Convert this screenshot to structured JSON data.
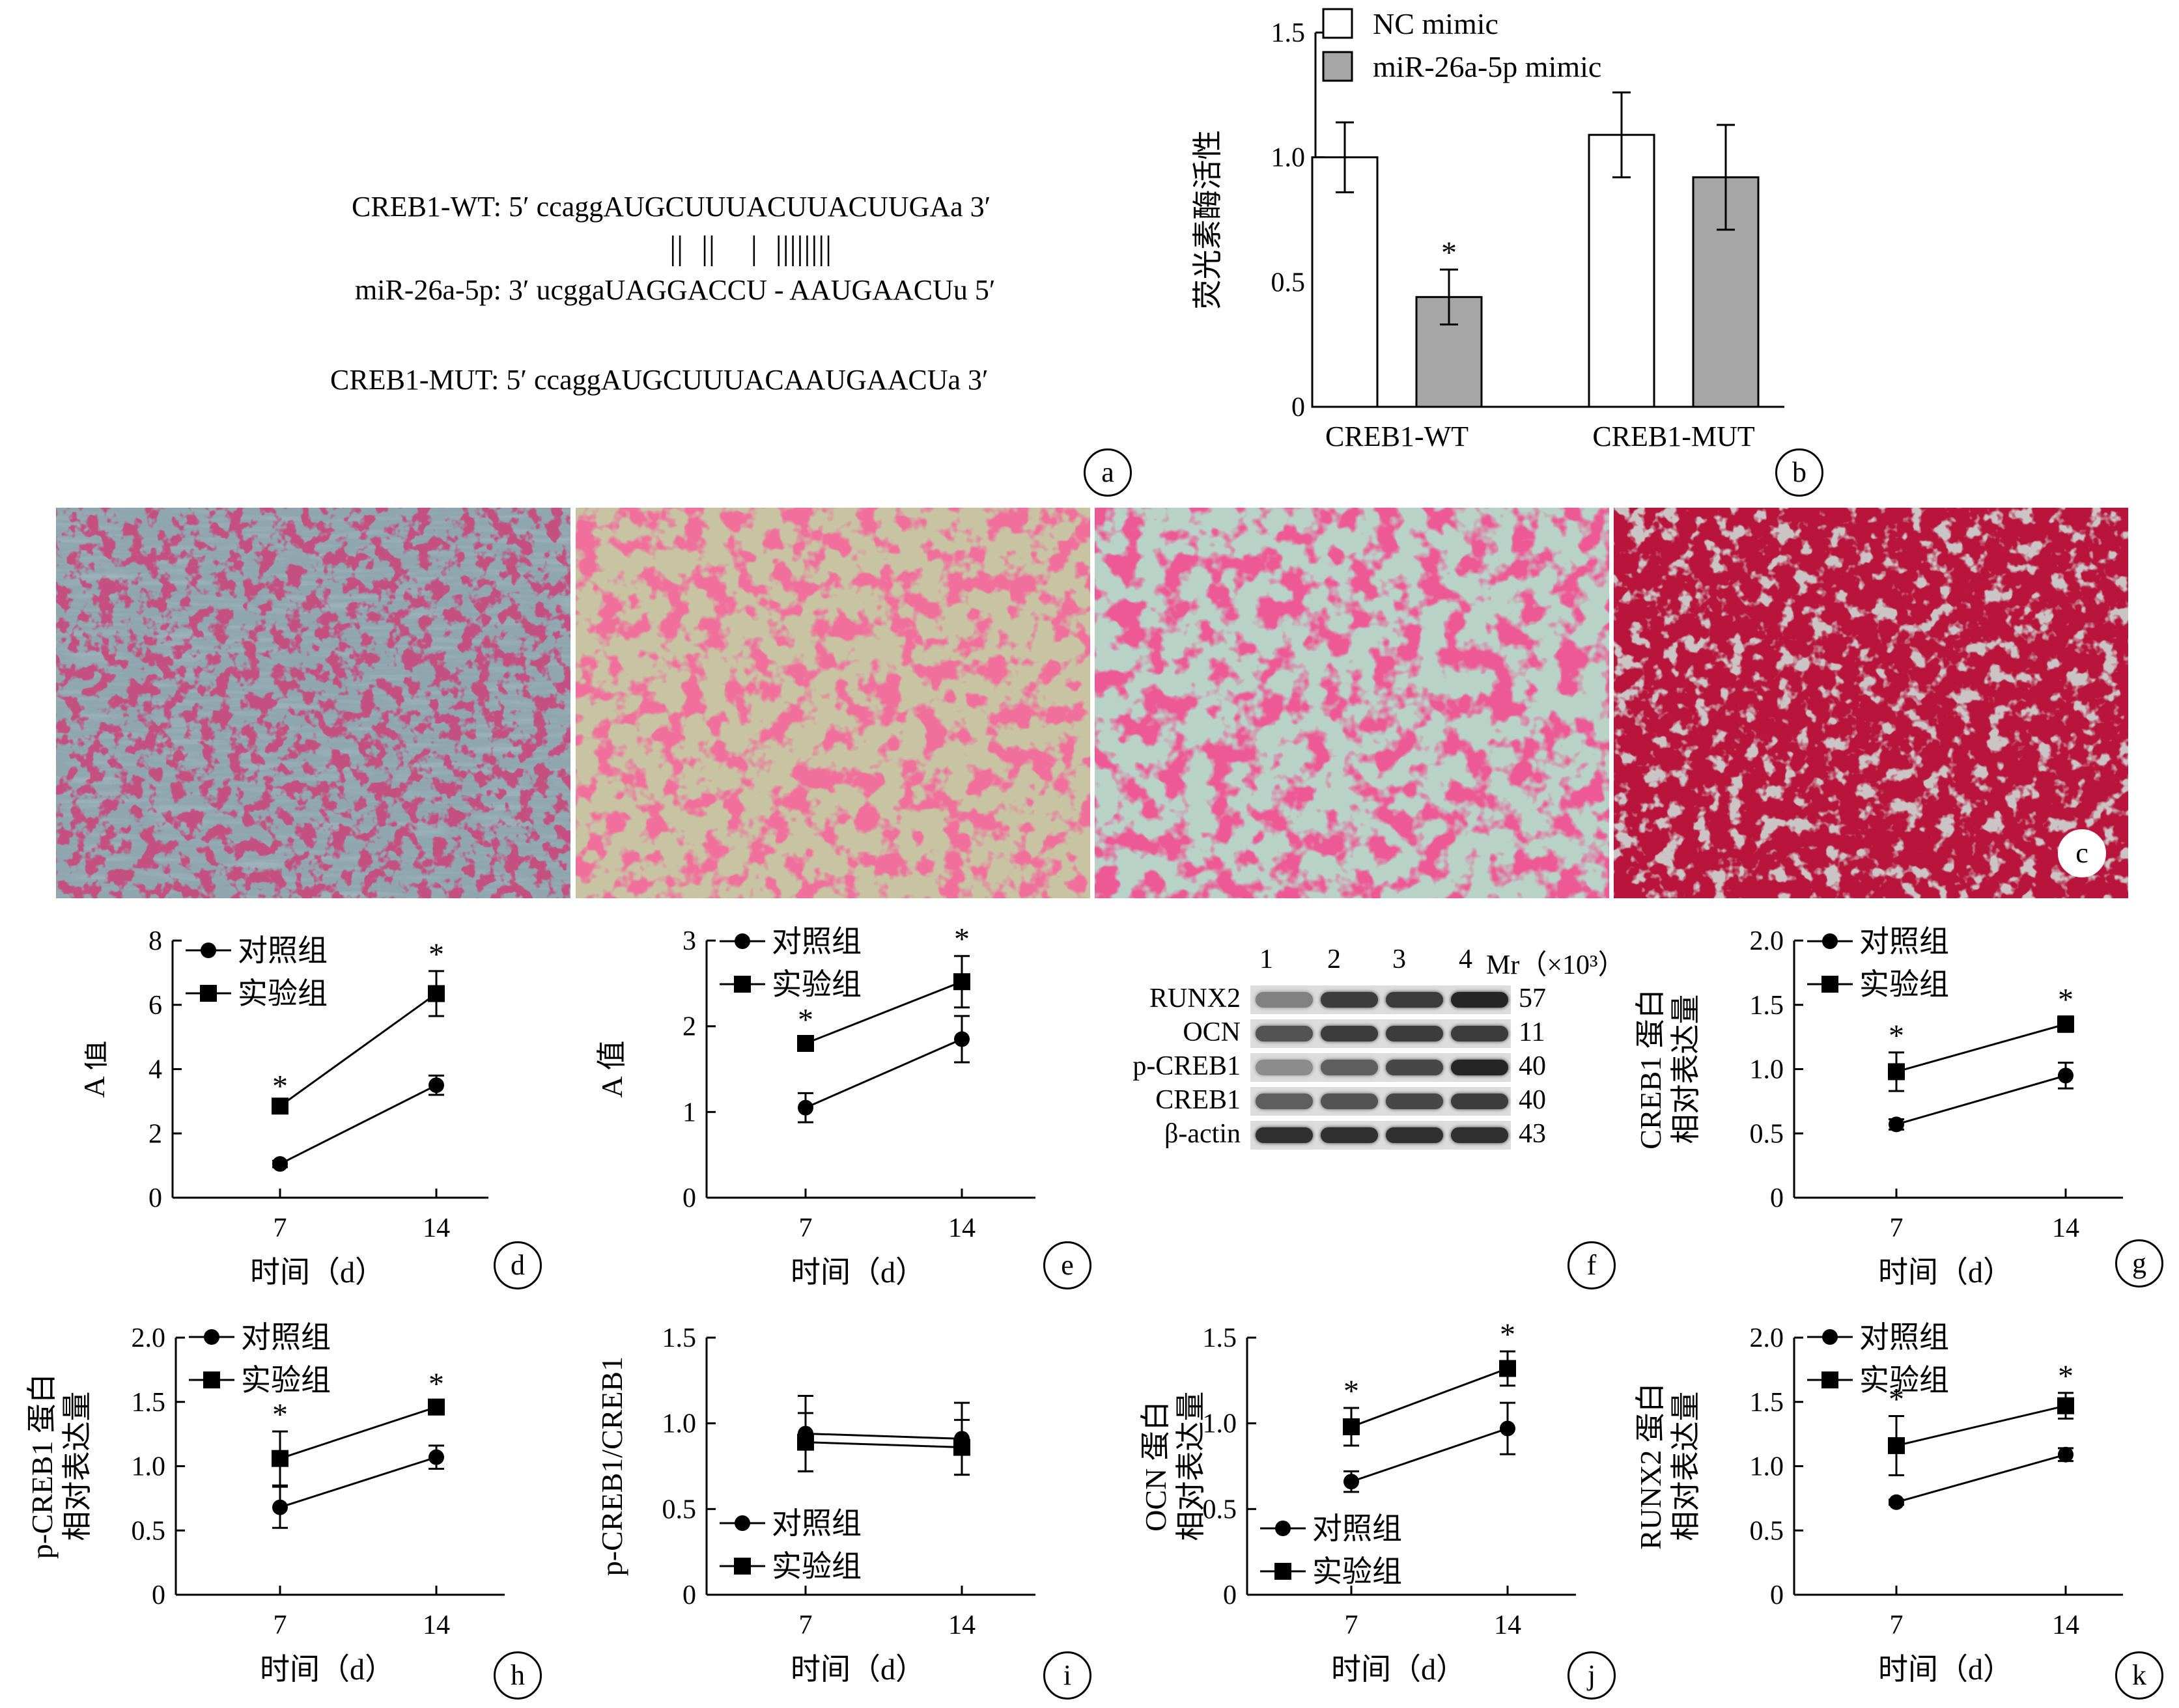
{
  "panel_letters": [
    "a",
    "b",
    "c",
    "d",
    "e",
    "f",
    "g",
    "h",
    "i",
    "j",
    "k"
  ],
  "panel_a": {
    "wt_line": "CREB1-WT: 5′ ccaggAUGCUUUACUUACUUGAa 3′",
    "pair_marks": "||  ||    |  ||||||||",
    "mir_line": "miR-26a-5p: 3′ ucggaUAGGACCU - AAUGAACUu 5′",
    "mut_line": "CREB1-MUT: 5′ ccaggAUGCUUUACAAUGAACUa 3′"
  },
  "panel_f": {
    "lanes": [
      "1",
      "2",
      "3",
      "4"
    ],
    "mr_label": "Mr（×10³）",
    "bands": [
      {
        "name": "RUNX2",
        "mr": "57"
      },
      {
        "name": "OCN",
        "mr": "11"
      },
      {
        "name": "p-CREB1",
        "mr": "40"
      },
      {
        "name": "CREB1",
        "mr": "40"
      },
      {
        "name": "β-actin",
        "mr": "43"
      }
    ]
  },
  "chart_data": [
    {
      "id": "b",
      "type": "bar",
      "categories": [
        "CREB1-WT",
        "CREB1-MUT"
      ],
      "series": [
        {
          "name": "NC mimic",
          "values": [
            1.0,
            1.09
          ],
          "errors": [
            0.14,
            0.17
          ],
          "sig": [
            false,
            false
          ],
          "fill": "#ffffff"
        },
        {
          "name": "miR-26a-5p mimic",
          "values": [
            0.44,
            0.92
          ],
          "errors": [
            0.11,
            0.21
          ],
          "sig": [
            true,
            false
          ],
          "fill": "#a6a6a6"
        }
      ],
      "ylabel": "荧光素酶活性",
      "ylim": [
        0,
        1.5
      ],
      "yticks": [
        "0",
        "0.5",
        "1.0",
        "1.5"
      ],
      "legend": "top-left"
    },
    {
      "id": "d",
      "type": "line",
      "x": [
        "7",
        "14"
      ],
      "series": [
        {
          "name": "对照组",
          "marker": "circle",
          "values": [
            1.05,
            3.5
          ],
          "errors": [
            0.1,
            0.3
          ],
          "sig": [
            false,
            false
          ]
        },
        {
          "name": "实验组",
          "marker": "square",
          "values": [
            2.85,
            6.35
          ],
          "errors": [
            0.1,
            0.7
          ],
          "sig": [
            true,
            true
          ]
        }
      ],
      "ylabel": "A 值",
      "xlabel": "时间（d）",
      "ylim": [
        0,
        8
      ],
      "yticks": [
        "0",
        "2",
        "4",
        "6",
        "8"
      ],
      "legend": "top-left"
    },
    {
      "id": "e",
      "type": "line",
      "x": [
        "7",
        "14"
      ],
      "series": [
        {
          "name": "对照组",
          "marker": "circle",
          "values": [
            1.05,
            1.85
          ],
          "errors": [
            0.17,
            0.27
          ],
          "sig": [
            false,
            false
          ]
        },
        {
          "name": "实验组",
          "marker": "square",
          "values": [
            1.8,
            2.52
          ],
          "errors": [
            0.08,
            0.3
          ],
          "sig": [
            true,
            true
          ]
        }
      ],
      "ylabel": "A 值",
      "xlabel": "时间（d）",
      "ylim": [
        0,
        3
      ],
      "yticks": [
        "0",
        "1",
        "2",
        "3"
      ],
      "legend": "top-left"
    },
    {
      "id": "g",
      "type": "line",
      "x": [
        "7",
        "14"
      ],
      "series": [
        {
          "name": "对照组",
          "marker": "circle",
          "values": [
            0.57,
            0.95
          ],
          "errors": [
            0.04,
            0.1
          ],
          "sig": [
            false,
            false
          ]
        },
        {
          "name": "实验组",
          "marker": "square",
          "values": [
            0.98,
            1.35
          ],
          "errors": [
            0.15,
            0.06
          ],
          "sig": [
            true,
            true
          ]
        }
      ],
      "ylabel": "CREB1 蛋白相对表达量",
      "ylabel_lines": [
        "CREB1 蛋白",
        "相对表达量"
      ],
      "xlabel": "时间（d）",
      "ylim": [
        0,
        2.0
      ],
      "yticks": [
        "0",
        "0.5",
        "1.0",
        "1.5",
        "2.0"
      ],
      "legend": "top-left"
    },
    {
      "id": "h",
      "type": "line",
      "x": [
        "7",
        "14"
      ],
      "series": [
        {
          "name": "对照组",
          "marker": "circle",
          "values": [
            0.68,
            1.07
          ],
          "errors": [
            0.16,
            0.09
          ],
          "sig": [
            false,
            false
          ]
        },
        {
          "name": "实验组",
          "marker": "square",
          "values": [
            1.06,
            1.46
          ],
          "errors": [
            0.21,
            0.05
          ],
          "sig": [
            true,
            true
          ]
        }
      ],
      "ylabel": "p-CREB1 蛋白相对表达量",
      "ylabel_lines": [
        "p-CREB1 蛋白",
        "相对表达量"
      ],
      "xlabel": "时间（d）",
      "ylim": [
        0,
        2.0
      ],
      "yticks": [
        "0",
        "0.5",
        "1.0",
        "1.5",
        "2.0"
      ],
      "legend": "top-left"
    },
    {
      "id": "i",
      "type": "line",
      "x": [
        "7",
        "14"
      ],
      "series": [
        {
          "name": "对照组",
          "marker": "circle",
          "values": [
            0.94,
            0.91
          ],
          "errors": [
            0.22,
            0.21
          ],
          "sig": [
            false,
            false
          ]
        },
        {
          "name": "实验组",
          "marker": "square",
          "values": [
            0.89,
            0.86
          ],
          "errors": [
            0.17,
            0.16
          ],
          "sig": [
            false,
            false
          ]
        }
      ],
      "ylabel": "p-CREB1/CREB1",
      "ylabel_lines": [
        "p-CREB1/CREB1"
      ],
      "xlabel": "时间（d）",
      "ylim": [
        0,
        1.5
      ],
      "yticks": [
        "0",
        "0.5",
        "1.0",
        "1.5"
      ],
      "legend": "bottom-left"
    },
    {
      "id": "j",
      "type": "line",
      "x": [
        "7",
        "14"
      ],
      "series": [
        {
          "name": "对照组",
          "marker": "circle",
          "values": [
            0.66,
            0.97
          ],
          "errors": [
            0.06,
            0.15
          ],
          "sig": [
            false,
            false
          ]
        },
        {
          "name": "实验组",
          "marker": "square",
          "values": [
            0.98,
            1.32
          ],
          "errors": [
            0.11,
            0.1
          ],
          "sig": [
            true,
            true
          ]
        }
      ],
      "ylabel": "OCN 蛋白相对表达量",
      "ylabel_lines": [
        "OCN 蛋白",
        "相对表达量"
      ],
      "xlabel": "时间（d）",
      "ylim": [
        0,
        1.5
      ],
      "yticks": [
        "0",
        "0.5",
        "1.0",
        "1.5"
      ],
      "legend": "bottom-left"
    },
    {
      "id": "k",
      "type": "line",
      "x": [
        "7",
        "14"
      ],
      "series": [
        {
          "name": "对照组",
          "marker": "circle",
          "values": [
            0.72,
            1.09
          ],
          "errors": [
            0.02,
            0.05
          ],
          "sig": [
            false,
            false
          ]
        },
        {
          "name": "实验组",
          "marker": "square",
          "values": [
            1.16,
            1.47
          ],
          "errors": [
            0.23,
            0.1
          ],
          "sig": [
            true,
            true
          ]
        }
      ],
      "ylabel": "RUNX2 蛋白相对表达量",
      "ylabel_lines": [
        "RUNX2 蛋白",
        "相对表达量"
      ],
      "xlabel": "时间（d）",
      "ylim": [
        0,
        2.0
      ],
      "yticks": [
        "0",
        "0.5",
        "1.0",
        "1.5",
        "2.0"
      ],
      "legend": "top-left"
    }
  ]
}
